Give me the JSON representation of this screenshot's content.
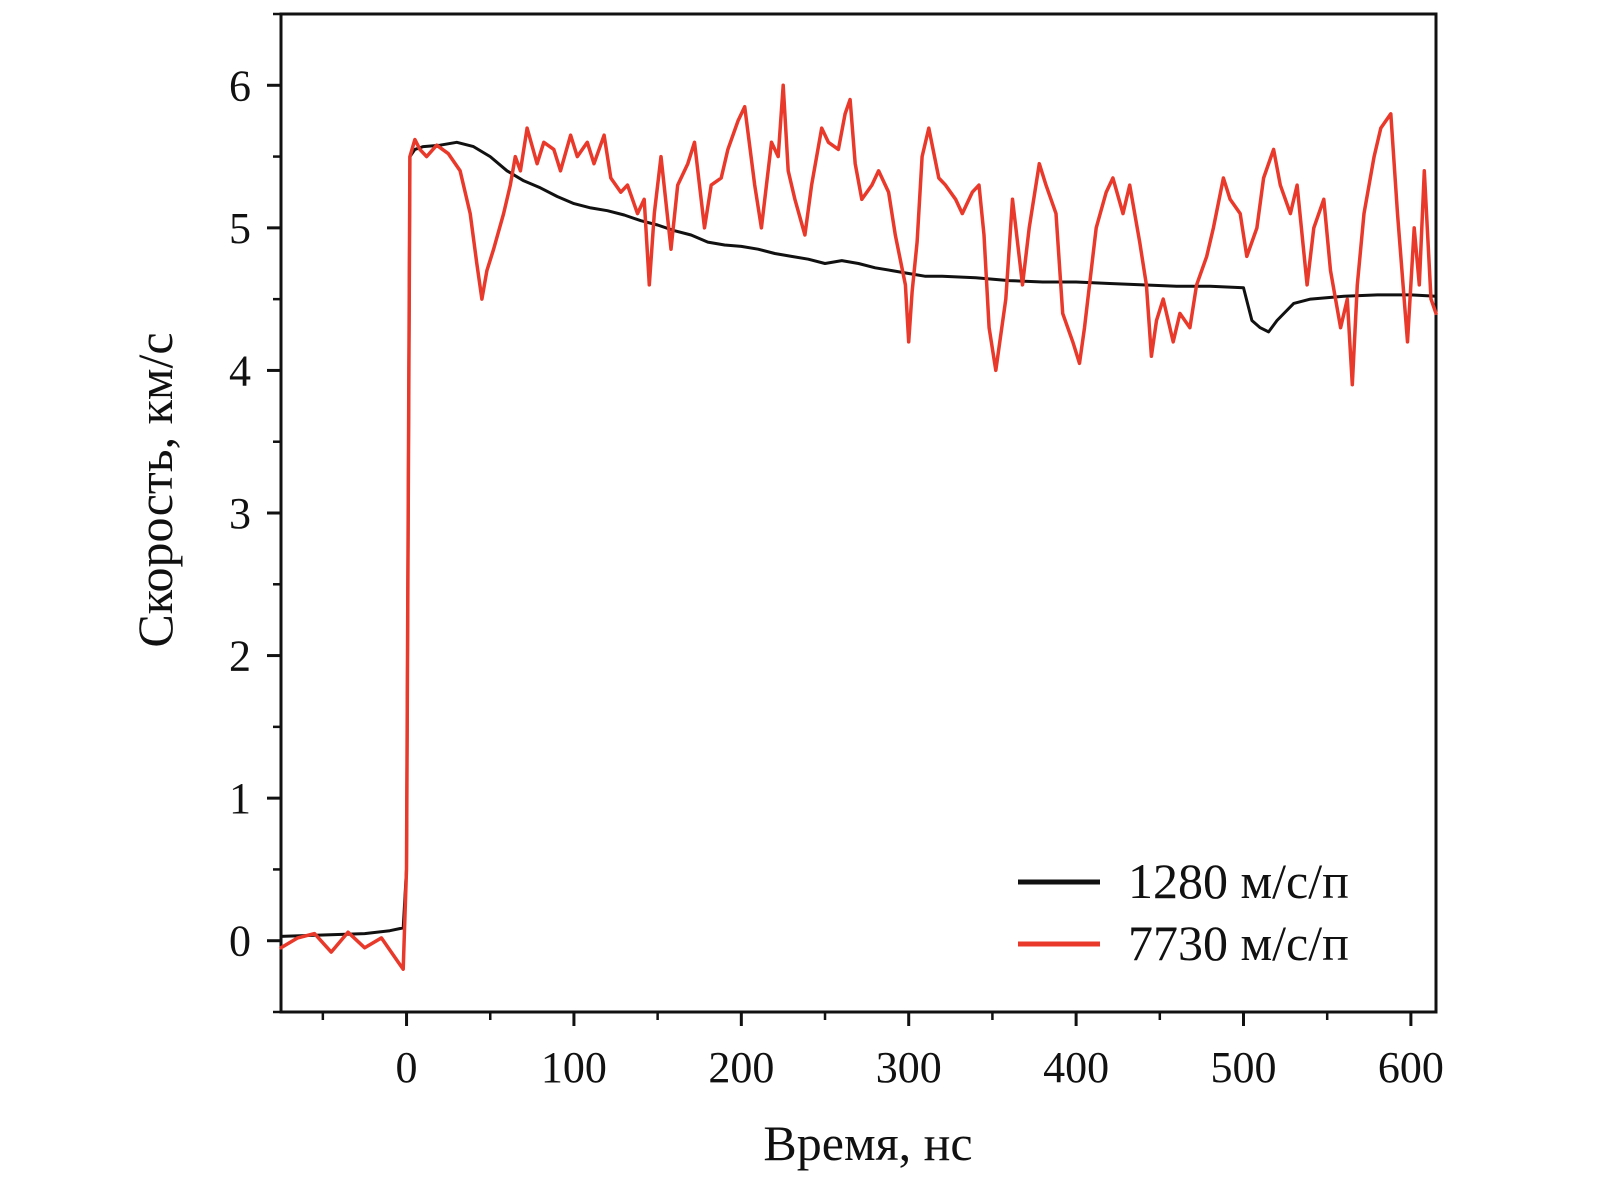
{
  "chart_data": {
    "type": "line",
    "title": "",
    "xlabel": "Время, нс",
    "ylabel": "Скорость, км/с",
    "xlim": [
      -75,
      615
    ],
    "ylim": [
      -0.5,
      6.5
    ],
    "x_ticks": [
      0,
      100,
      200,
      300,
      400,
      500,
      600
    ],
    "x_tick_labels": [
      "0",
      "100",
      "200",
      "300",
      "400",
      "500",
      "600"
    ],
    "y_ticks": [
      0,
      1,
      2,
      3,
      4,
      5,
      6
    ],
    "y_tick_labels": [
      "0",
      "1",
      "2",
      "3",
      "4",
      "5",
      "6"
    ],
    "grid": false,
    "legend": "bottom-right",
    "series": [
      {
        "name": "1280 м/с/п",
        "color": "#111111",
        "x": [
          -75,
          -50,
          -25,
          -10,
          -2,
          0,
          2,
          5,
          10,
          20,
          30,
          40,
          50,
          60,
          70,
          80,
          90,
          100,
          110,
          120,
          130,
          140,
          150,
          160,
          170,
          180,
          190,
          200,
          210,
          220,
          230,
          240,
          250,
          260,
          270,
          280,
          290,
          300,
          310,
          320,
          340,
          360,
          380,
          400,
          420,
          440,
          460,
          480,
          500,
          505,
          510,
          515,
          520,
          530,
          540,
          560,
          580,
          600,
          615
        ],
        "y": [
          0.03,
          0.04,
          0.05,
          0.07,
          0.09,
          0.5,
          5.5,
          5.55,
          5.57,
          5.58,
          5.6,
          5.57,
          5.5,
          5.4,
          5.33,
          5.28,
          5.22,
          5.17,
          5.14,
          5.12,
          5.09,
          5.05,
          5.02,
          4.98,
          4.95,
          4.9,
          4.88,
          4.87,
          4.85,
          4.82,
          4.8,
          4.78,
          4.75,
          4.77,
          4.75,
          4.72,
          4.7,
          4.68,
          4.66,
          4.66,
          4.65,
          4.63,
          4.62,
          4.62,
          4.61,
          4.6,
          4.59,
          4.59,
          4.58,
          4.35,
          4.3,
          4.27,
          4.35,
          4.47,
          4.5,
          4.52,
          4.53,
          4.53,
          4.52
        ]
      },
      {
        "name": "7730 м/с/п",
        "color": "#e8392b",
        "x": [
          -75,
          -65,
          -55,
          -45,
          -35,
          -25,
          -15,
          -5,
          -2,
          0,
          2,
          5,
          8,
          12,
          18,
          25,
          32,
          38,
          42,
          45,
          48,
          52,
          58,
          62,
          65,
          68,
          72,
          78,
          82,
          88,
          92,
          98,
          102,
          108,
          112,
          118,
          122,
          128,
          132,
          138,
          142,
          145,
          148,
          152,
          158,
          162,
          168,
          172,
          178,
          182,
          188,
          192,
          198,
          202,
          208,
          212,
          218,
          222,
          225,
          228,
          232,
          238,
          242,
          248,
          252,
          258,
          262,
          265,
          268,
          272,
          278,
          282,
          288,
          292,
          298,
          300,
          302,
          305,
          308,
          312,
          318,
          322,
          328,
          332,
          338,
          342,
          345,
          348,
          352,
          358,
          362,
          368,
          372,
          378,
          382,
          388,
          392,
          398,
          402,
          405,
          408,
          412,
          418,
          422,
          428,
          432,
          438,
          442,
          445,
          448,
          452,
          458,
          462,
          468,
          472,
          478,
          482,
          488,
          492,
          498,
          502,
          508,
          512,
          518,
          522,
          528,
          532,
          538,
          542,
          548,
          552,
          558,
          562,
          565,
          568,
          572,
          578,
          582,
          588,
          592,
          598,
          602,
          605,
          608,
          612,
          615
        ],
        "y": [
          -0.05,
          0.02,
          0.05,
          -0.08,
          0.06,
          -0.05,
          0.02,
          -0.15,
          -0.2,
          0.5,
          5.5,
          5.62,
          5.55,
          5.5,
          5.58,
          5.52,
          5.4,
          5.1,
          4.75,
          4.5,
          4.7,
          4.85,
          5.1,
          5.3,
          5.5,
          5.4,
          5.7,
          5.45,
          5.6,
          5.55,
          5.4,
          5.65,
          5.5,
          5.6,
          5.45,
          5.65,
          5.35,
          5.25,
          5.3,
          5.1,
          5.2,
          4.6,
          5.1,
          5.5,
          4.85,
          5.3,
          5.45,
          5.6,
          5.0,
          5.3,
          5.35,
          5.55,
          5.75,
          5.85,
          5.3,
          5.0,
          5.6,
          5.5,
          6.0,
          5.4,
          5.2,
          4.95,
          5.3,
          5.7,
          5.6,
          5.55,
          5.8,
          5.9,
          5.45,
          5.2,
          5.3,
          5.4,
          5.25,
          4.95,
          4.6,
          4.2,
          4.55,
          4.9,
          5.5,
          5.7,
          5.35,
          5.3,
          5.2,
          5.1,
          5.25,
          5.3,
          4.95,
          4.3,
          4.0,
          4.5,
          5.2,
          4.6,
          5.0,
          5.45,
          5.3,
          5.1,
          4.4,
          4.2,
          4.05,
          4.3,
          4.6,
          5.0,
          5.25,
          5.35,
          5.1,
          5.3,
          4.9,
          4.6,
          4.1,
          4.35,
          4.5,
          4.2,
          4.4,
          4.3,
          4.6,
          4.8,
          5.0,
          5.35,
          5.2,
          5.1,
          4.8,
          5.0,
          5.35,
          5.55,
          5.3,
          5.1,
          5.3,
          4.6,
          5.0,
          5.2,
          4.7,
          4.3,
          4.5,
          3.9,
          4.6,
          5.1,
          5.5,
          5.7,
          5.8,
          5.1,
          4.2,
          5.0,
          4.6,
          5.4,
          4.5,
          4.4
        ]
      }
    ]
  }
}
